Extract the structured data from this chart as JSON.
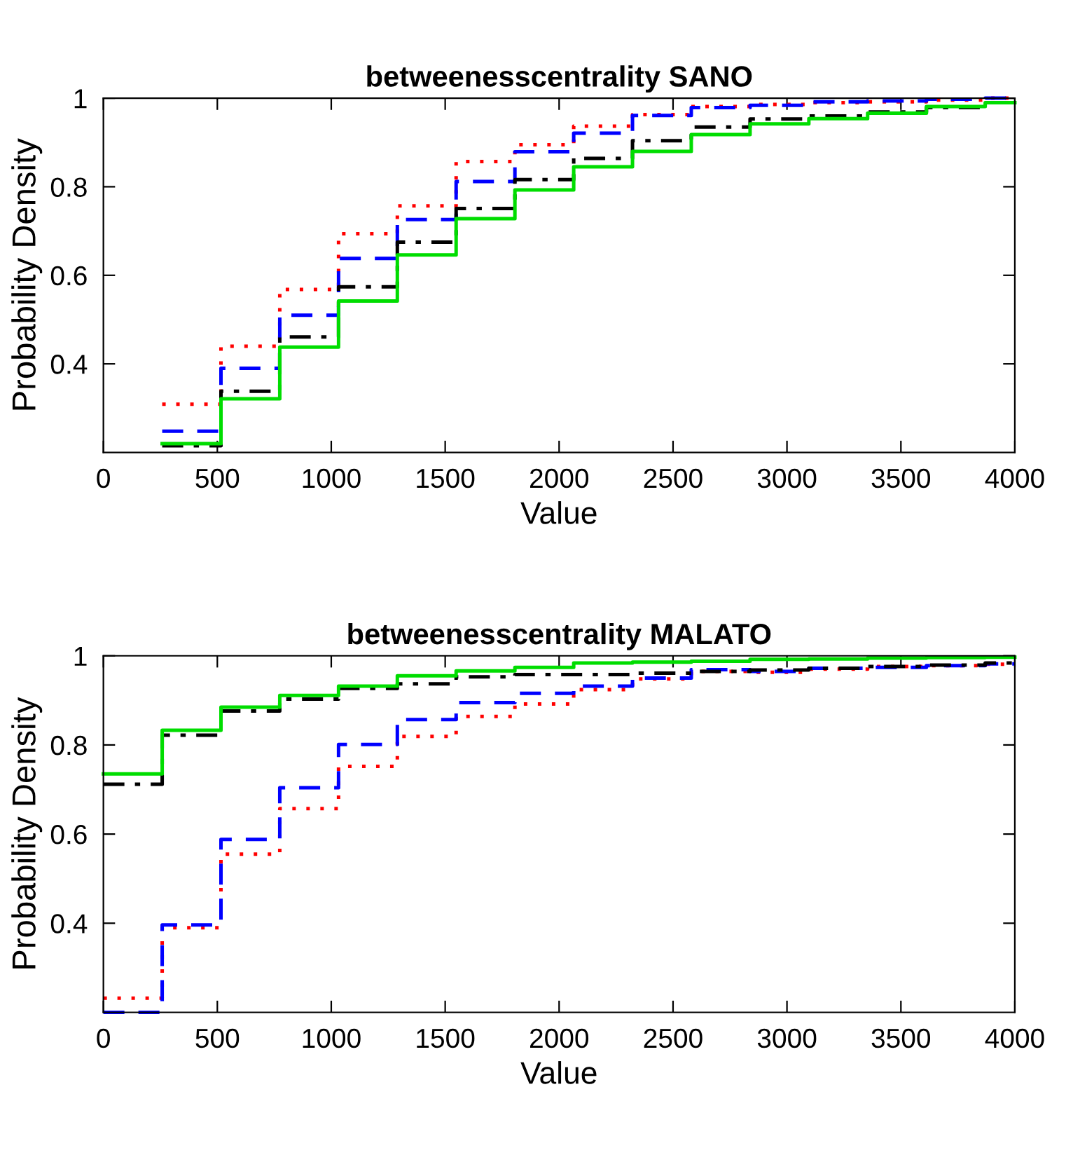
{
  "chart_data": [
    {
      "type": "step",
      "title": "betweenesscentrality SANO",
      "xlabel": "Value",
      "ylabel": "Probability Density",
      "x": [
        258,
        516,
        774,
        1032,
        1290,
        1548,
        1806,
        2064,
        2322,
        2580,
        2838,
        3096,
        3354,
        3612,
        3870,
        4000
      ],
      "series": [
        {
          "color": "#ff0000",
          "line_style": "dotted",
          "values": [
            0.309,
            0.44,
            0.568,
            0.694,
            0.757,
            0.857,
            0.895,
            0.937,
            0.963,
            0.981,
            0.986,
            0.99,
            0.992,
            0.996,
            1.0,
            1.0
          ]
        },
        {
          "color": "#0000ff",
          "line_style": "dashed",
          "values": [
            0.248,
            0.39,
            0.51,
            0.638,
            0.726,
            0.812,
            0.879,
            0.921,
            0.961,
            0.979,
            0.984,
            0.992,
            0.994,
            0.998,
            1.0,
            1.0
          ]
        },
        {
          "color": "#000000",
          "line_style": "dashdot",
          "values": [
            0.215,
            0.338,
            0.461,
            0.574,
            0.675,
            0.751,
            0.816,
            0.864,
            0.904,
            0.935,
            0.953,
            0.96,
            0.969,
            0.979,
            0.99,
            0.99
          ]
        },
        {
          "color": "#00dd00",
          "line_style": "solid",
          "values": [
            0.22,
            0.321,
            0.438,
            0.542,
            0.646,
            0.728,
            0.793,
            0.845,
            0.88,
            0.918,
            0.942,
            0.954,
            0.966,
            0.981,
            0.99,
            0.99
          ]
        }
      ],
      "xlim": [
        0,
        4000
      ],
      "xticks": [
        0,
        500,
        1000,
        1500,
        2000,
        2500,
        3000,
        3500,
        4000
      ],
      "ylim": [
        0.2,
        1
      ],
      "yticks": [
        0.4,
        0.6,
        0.8,
        1
      ],
      "grid": false,
      "legend": false
    },
    {
      "type": "step",
      "title": "betweenesscentrality MALATO",
      "xlabel": "Value",
      "ylabel": "Probability Density",
      "x": [
        0,
        258,
        516,
        774,
        1032,
        1290,
        1548,
        1806,
        2064,
        2322,
        2580,
        2838,
        3096,
        3354,
        3612,
        3870,
        4000
      ],
      "series": [
        {
          "color": "#ff0000",
          "line_style": "dotted",
          "values": [
            0.232,
            0.39,
            0.555,
            0.657,
            0.752,
            0.819,
            0.864,
            0.892,
            0.924,
            0.948,
            0.965,
            0.963,
            0.97,
            0.976,
            0.978,
            0.981,
            0.981
          ]
        },
        {
          "color": "#0000ff",
          "line_style": "dashed",
          "values": [
            0.2,
            0.396,
            0.588,
            0.704,
            0.801,
            0.857,
            0.895,
            0.916,
            0.932,
            0.95,
            0.969,
            0.965,
            0.972,
            0.974,
            0.978,
            0.982,
            0.982
          ]
        },
        {
          "color": "#000000",
          "line_style": "dashdot",
          "values": [
            0.712,
            0.822,
            0.876,
            0.903,
            0.927,
            0.937,
            0.953,
            0.958,
            0.958,
            0.961,
            0.965,
            0.968,
            0.972,
            0.976,
            0.979,
            0.984,
            0.984
          ]
        },
        {
          "color": "#00dd00",
          "line_style": "solid",
          "values": [
            0.735,
            0.833,
            0.885,
            0.911,
            0.932,
            0.955,
            0.966,
            0.974,
            0.984,
            0.986,
            0.988,
            0.992,
            0.993,
            0.995,
            0.996,
            0.997,
            0.997
          ]
        }
      ],
      "xlim": [
        0,
        4000
      ],
      "xticks": [
        0,
        500,
        1000,
        1500,
        2000,
        2500,
        3000,
        3500,
        4000
      ],
      "ylim": [
        0.2,
        1
      ],
      "yticks": [
        0.4,
        0.6,
        0.8,
        1
      ],
      "grid": false,
      "legend": false
    }
  ]
}
